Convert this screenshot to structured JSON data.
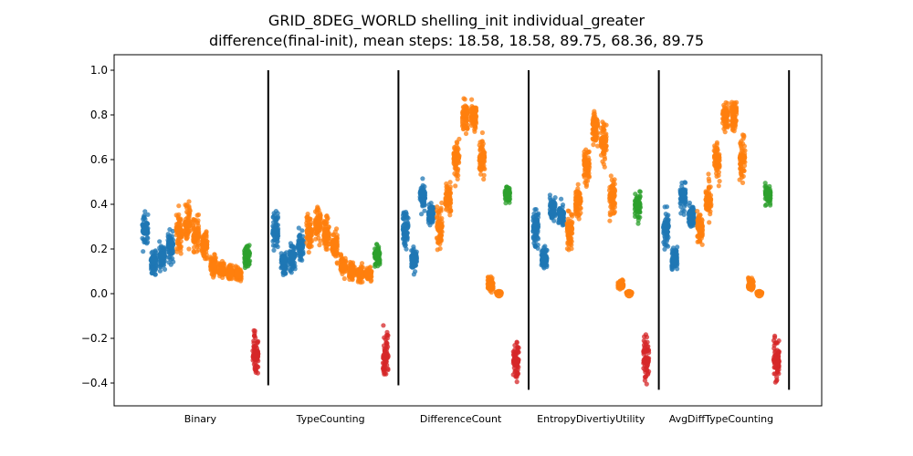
{
  "chart_data": {
    "type": "scatter",
    "title": "GRID_8DEG_WORLD shelling_init individual_greater",
    "subtitle": "difference(final-init), mean steps: 18.58, 18.58, 89.75, 68.36, 89.75",
    "xlabel": "",
    "ylabel": "",
    "ylim": [
      -0.5,
      1.05
    ],
    "yticks": [
      "1.0",
      "0.8",
      "0.6",
      "0.4",
      "0.2",
      "0.0",
      "−0.2",
      "−0.4"
    ],
    "ytick_values": [
      1.0,
      0.8,
      0.6,
      0.4,
      0.2,
      0.0,
      -0.2,
      -0.4
    ],
    "grid": false,
    "colors": {
      "blue": "#1f77b4",
      "orange": "#ff7f0e",
      "green": "#2ca02c",
      "red": "#d62728",
      "divider": "#000000"
    },
    "groups": [
      {
        "name": "Binary",
        "columns": [
          {
            "color": "blue",
            "mean": 0.28,
            "min": 0.16,
            "max": 0.41
          },
          {
            "color": "blue",
            "mean": 0.15,
            "min": 0.06,
            "max": 0.22
          },
          {
            "color": "blue",
            "mean": 0.17,
            "min": 0.08,
            "max": 0.24
          },
          {
            "color": "blue",
            "mean": 0.22,
            "min": 0.12,
            "max": 0.31
          },
          {
            "color": "orange",
            "mean": 0.28,
            "min": 0.14,
            "max": 0.41
          },
          {
            "color": "orange",
            "mean": 0.31,
            "min": 0.18,
            "max": 0.44
          },
          {
            "color": "orange",
            "mean": 0.26,
            "min": 0.15,
            "max": 0.39
          },
          {
            "color": "orange",
            "mean": 0.22,
            "min": 0.12,
            "max": 0.31
          },
          {
            "color": "orange",
            "mean": 0.12,
            "min": 0.06,
            "max": 0.2
          },
          {
            "color": "orange",
            "mean": 0.1,
            "min": 0.05,
            "max": 0.16
          },
          {
            "color": "orange",
            "mean": 0.09,
            "min": 0.04,
            "max": 0.14
          },
          {
            "color": "orange",
            "mean": 0.09,
            "min": 0.04,
            "max": 0.13
          },
          {
            "color": "green",
            "mean": 0.18,
            "min": 0.09,
            "max": 0.24
          },
          {
            "color": "red",
            "mean": -0.28,
            "min": -0.41,
            "max": -0.12
          }
        ],
        "divider": {
          "top": 1.0,
          "bottom": -0.41
        }
      },
      {
        "name": "TypeCounting",
        "columns": [
          {
            "color": "blue",
            "mean": 0.28,
            "min": 0.16,
            "max": 0.41
          },
          {
            "color": "blue",
            "mean": 0.15,
            "min": 0.06,
            "max": 0.22
          },
          {
            "color": "blue",
            "mean": 0.17,
            "min": 0.08,
            "max": 0.24
          },
          {
            "color": "blue",
            "mean": 0.22,
            "min": 0.12,
            "max": 0.31
          },
          {
            "color": "orange",
            "mean": 0.28,
            "min": 0.14,
            "max": 0.41
          },
          {
            "color": "orange",
            "mean": 0.31,
            "min": 0.18,
            "max": 0.44
          },
          {
            "color": "orange",
            "mean": 0.26,
            "min": 0.15,
            "max": 0.39
          },
          {
            "color": "orange",
            "mean": 0.22,
            "min": 0.12,
            "max": 0.31
          },
          {
            "color": "orange",
            "mean": 0.12,
            "min": 0.06,
            "max": 0.2
          },
          {
            "color": "orange",
            "mean": 0.1,
            "min": 0.05,
            "max": 0.16
          },
          {
            "color": "orange",
            "mean": 0.09,
            "min": 0.04,
            "max": 0.14
          },
          {
            "color": "orange",
            "mean": 0.09,
            "min": 0.04,
            "max": 0.13
          },
          {
            "color": "green",
            "mean": 0.18,
            "min": 0.09,
            "max": 0.24
          },
          {
            "color": "red",
            "mean": -0.28,
            "min": -0.41,
            "max": -0.12
          }
        ],
        "divider": {
          "top": 1.0,
          "bottom": -0.41
        }
      },
      {
        "name": "DifferenceCount",
        "columns": [
          {
            "color": "blue",
            "mean": 0.3,
            "min": 0.16,
            "max": 0.43
          },
          {
            "color": "blue",
            "mean": 0.15,
            "min": 0.08,
            "max": 0.23
          },
          {
            "color": "blue",
            "mean": 0.45,
            "min": 0.34,
            "max": 0.52
          },
          {
            "color": "blue",
            "mean": 0.36,
            "min": 0.27,
            "max": 0.43
          },
          {
            "color": "orange",
            "mean": 0.3,
            "min": 0.16,
            "max": 0.43
          },
          {
            "color": "orange",
            "mean": 0.42,
            "min": 0.3,
            "max": 0.55
          },
          {
            "color": "orange",
            "mean": 0.61,
            "min": 0.47,
            "max": 0.72
          },
          {
            "color": "orange",
            "mean": 0.81,
            "min": 0.7,
            "max": 0.89
          },
          {
            "color": "orange",
            "mean": 0.82,
            "min": 0.7,
            "max": 0.89
          },
          {
            "color": "orange",
            "mean": 0.61,
            "min": 0.46,
            "max": 0.75
          },
          {
            "color": "orange",
            "mean": 0.03,
            "min": 0.0,
            "max": 0.09
          },
          {
            "color": "orange",
            "mean": 0.0,
            "min": 0.0,
            "max": 0.01
          },
          {
            "color": "green",
            "mean": 0.45,
            "min": 0.38,
            "max": 0.51
          },
          {
            "color": "red",
            "mean": -0.3,
            "min": -0.43,
            "max": -0.15
          }
        ],
        "divider": {
          "top": 1.0,
          "bottom": -0.43
        }
      },
      {
        "name": "EntropyDivertiyUtility",
        "columns": [
          {
            "color": "blue",
            "mean": 0.3,
            "min": 0.16,
            "max": 0.43
          },
          {
            "color": "blue",
            "mean": 0.15,
            "min": 0.08,
            "max": 0.23
          },
          {
            "color": "blue",
            "mean": 0.4,
            "min": 0.31,
            "max": 0.45
          },
          {
            "color": "blue",
            "mean": 0.36,
            "min": 0.27,
            "max": 0.43
          },
          {
            "color": "orange",
            "mean": 0.29,
            "min": 0.14,
            "max": 0.42
          },
          {
            "color": "orange",
            "mean": 0.42,
            "min": 0.3,
            "max": 0.52
          },
          {
            "color": "orange",
            "mean": 0.58,
            "min": 0.44,
            "max": 0.69
          },
          {
            "color": "orange",
            "mean": 0.76,
            "min": 0.62,
            "max": 0.85
          },
          {
            "color": "orange",
            "mean": 0.69,
            "min": 0.55,
            "max": 0.8
          },
          {
            "color": "orange",
            "mean": 0.44,
            "min": 0.31,
            "max": 0.56
          },
          {
            "color": "orange",
            "mean": 0.04,
            "min": 0.01,
            "max": 0.07
          },
          {
            "color": "orange",
            "mean": 0.0,
            "min": 0.0,
            "max": 0.01
          },
          {
            "color": "green",
            "mean": 0.4,
            "min": 0.31,
            "max": 0.47
          },
          {
            "color": "red",
            "mean": -0.3,
            "min": -0.43,
            "max": -0.15
          }
        ],
        "divider": {
          "top": 1.0,
          "bottom": -0.43
        }
      },
      {
        "name": "AvgDiffTypeCounting",
        "columns": [
          {
            "color": "blue",
            "mean": 0.3,
            "min": 0.16,
            "max": 0.43
          },
          {
            "color": "blue",
            "mean": 0.15,
            "min": 0.08,
            "max": 0.23
          },
          {
            "color": "blue",
            "mean": 0.45,
            "min": 0.34,
            "max": 0.52
          },
          {
            "color": "blue",
            "mean": 0.36,
            "min": 0.27,
            "max": 0.43
          },
          {
            "color": "orange",
            "mean": 0.3,
            "min": 0.16,
            "max": 0.43
          },
          {
            "color": "orange",
            "mean": 0.42,
            "min": 0.3,
            "max": 0.55
          },
          {
            "color": "orange",
            "mean": 0.61,
            "min": 0.47,
            "max": 0.72
          },
          {
            "color": "orange",
            "mean": 0.81,
            "min": 0.7,
            "max": 0.89
          },
          {
            "color": "orange",
            "mean": 0.82,
            "min": 0.7,
            "max": 0.89
          },
          {
            "color": "orange",
            "mean": 0.61,
            "min": 0.46,
            "max": 0.75
          },
          {
            "color": "orange",
            "mean": 0.03,
            "min": 0.0,
            "max": 0.09
          },
          {
            "color": "orange",
            "mean": 0.0,
            "min": 0.0,
            "max": 0.01
          },
          {
            "color": "green",
            "mean": 0.45,
            "min": 0.38,
            "max": 0.51
          },
          {
            "color": "red",
            "mean": -0.3,
            "min": -0.43,
            "max": -0.15
          }
        ],
        "divider": {
          "top": 1.0,
          "bottom": -0.43
        }
      }
    ]
  }
}
